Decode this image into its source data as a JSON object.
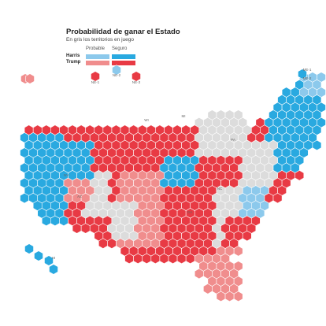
{
  "header": {
    "title": "Probabilidad de ganar el Estado",
    "subtitle": "En gris los territorios en juego"
  },
  "legend": {
    "col_probable": "Probable",
    "col_seguro": "Seguro",
    "row_harris": "Harris",
    "row_trump": "Trump"
  },
  "colors": {
    "harris_safe": "#29a9e0",
    "harris_likely": "#8cc9ec",
    "trump_safe": "#e83a44",
    "trump_likely": "#f08d8d",
    "tossup": "#dcdcdc"
  },
  "map": {
    "district_labels": [
      "NE-1",
      "NE-2",
      "NE-3",
      "ME-1",
      "ME-2"
    ],
    "state_labels": [
      "WI",
      "MI",
      "PA",
      "NC",
      "GA",
      "AZ",
      "NV",
      "HI"
    ]
  }
}
